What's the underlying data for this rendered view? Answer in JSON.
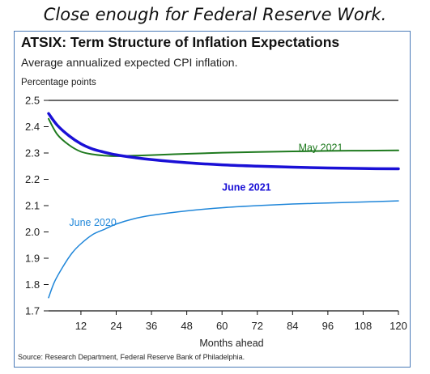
{
  "caption": "Close enough for Federal Reserve Work.",
  "source": "Source: Research Department, Federal Reserve Bank of Philadelphia.",
  "colors": {
    "may2021": "#1f7a1f",
    "june2021": "#1a10d6",
    "june2020": "#1f86d9",
    "axis": "#111111",
    "border": "#4a7ab8"
  },
  "chart_data": {
    "type": "line",
    "title": "ATSIX: Term Structure of Inflation Expectations",
    "subtitle": "Average annualized expected CPI inflation.",
    "ylabel": "Percentage points",
    "xlabel": "Months ahead",
    "xlim": [
      1,
      120
    ],
    "ylim": [
      1.7,
      2.5
    ],
    "xticks": [
      12,
      24,
      36,
      48,
      60,
      72,
      84,
      96,
      108,
      120
    ],
    "yticks": [
      "1.7",
      "1.8",
      "1.9",
      "2.0",
      "2.1",
      "2.2",
      "2.3",
      "2.4",
      "2.5"
    ],
    "grid": false,
    "series": [
      {
        "name": "May 2021",
        "x": [
          1,
          4,
          8,
          12,
          16,
          20,
          24,
          30,
          36,
          48,
          60,
          72,
          84,
          96,
          108,
          120
        ],
        "y": [
          2.43,
          2.37,
          2.33,
          2.305,
          2.295,
          2.29,
          2.288,
          2.29,
          2.292,
          2.297,
          2.301,
          2.304,
          2.306,
          2.308,
          2.309,
          2.31
        ]
      },
      {
        "name": "June 2021",
        "x": [
          1,
          4,
          8,
          12,
          16,
          20,
          24,
          30,
          36,
          48,
          60,
          72,
          84,
          96,
          108,
          120
        ],
        "y": [
          2.45,
          2.405,
          2.365,
          2.335,
          2.315,
          2.303,
          2.293,
          2.283,
          2.275,
          2.263,
          2.255,
          2.25,
          2.246,
          2.243,
          2.241,
          2.24
        ]
      },
      {
        "name": "June 2020",
        "x": [
          1,
          3,
          6,
          9,
          12,
          16,
          20,
          24,
          30,
          36,
          48,
          60,
          72,
          84,
          96,
          108,
          120
        ],
        "y": [
          1.75,
          1.81,
          1.87,
          1.92,
          1.955,
          1.99,
          2.01,
          2.03,
          2.05,
          2.063,
          2.08,
          2.092,
          2.1,
          2.106,
          2.11,
          2.114,
          2.118
        ]
      }
    ]
  }
}
